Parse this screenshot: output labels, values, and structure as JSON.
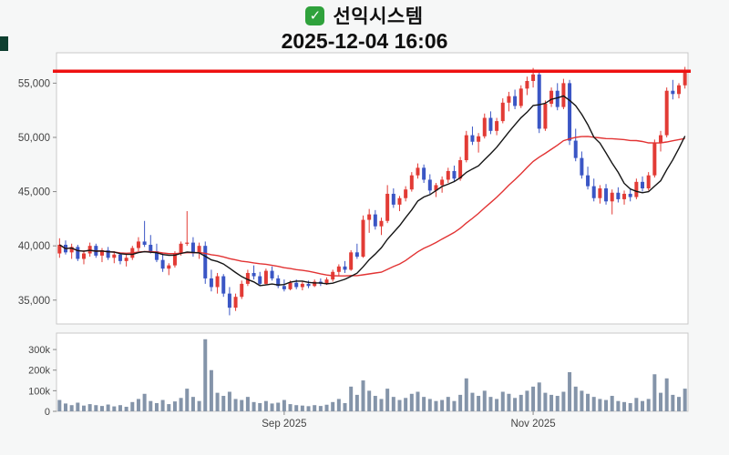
{
  "header": {
    "check_glyph": "✓",
    "title": "선익시스템",
    "subtitle": "2025-12-04 16:06"
  },
  "colors": {
    "page_bg": "#f6f7f7",
    "plot_bg": "#ffffff",
    "axis": "#c9c9c9",
    "axis_tick": "#888888",
    "tick_text": "#444444",
    "up": "#e23b35",
    "down": "#3a56c5",
    "ma_short": "#151515",
    "ma_long": "#e23333",
    "hline": "#ee1111",
    "volume": "#8494a9",
    "check_bg": "#2fa23c",
    "edge_artifact": "#0e3f30"
  },
  "chart_data": {
    "type": "candlestick",
    "title": "선익시스템",
    "timestamp": "2025-12-04 16:06",
    "hline": 56100,
    "y_axis": {
      "min": 32800,
      "max": 57800,
      "ticks": [
        35000,
        40000,
        45000,
        50000,
        55000
      ],
      "labels": [
        "35,000",
        "40,000",
        "45,000",
        "50,000",
        "55,000"
      ]
    },
    "x_axis": {
      "ticks": [
        {
          "label": "Sep 2025",
          "index": 37
        },
        {
          "label": "Nov 2025",
          "index": 78
        }
      ]
    },
    "volume_axis": {
      "max": 380000,
      "ticks": [
        0,
        100000,
        200000,
        300000
      ],
      "labels": [
        "0",
        "100k",
        "200k",
        "300k"
      ]
    },
    "moving_averages": [
      {
        "name": "ma-long-line",
        "window": 30,
        "color_key": "ma_long",
        "stroke_width": 1.4
      },
      {
        "name": "ma-short-line",
        "window": 10,
        "color_key": "ma_short",
        "stroke_width": 1.4
      }
    ],
    "candles": [
      [
        39300,
        40700,
        38900,
        40100
      ],
      [
        40100,
        40500,
        39200,
        39400
      ],
      [
        39400,
        40200,
        38800,
        39900
      ],
      [
        39900,
        40100,
        38600,
        38800
      ],
      [
        38800,
        39600,
        38300,
        39300
      ],
      [
        39300,
        40300,
        39000,
        40000
      ],
      [
        40000,
        40200,
        38900,
        39100
      ],
      [
        39100,
        39800,
        38500,
        39600
      ],
      [
        39600,
        39900,
        38700,
        38900
      ],
      [
        38900,
        39500,
        38400,
        39200
      ],
      [
        39200,
        39400,
        38300,
        38600
      ],
      [
        38600,
        39200,
        38100,
        38900
      ],
      [
        38900,
        40000,
        38700,
        39800
      ],
      [
        39800,
        40800,
        39500,
        40400
      ],
      [
        40400,
        42300,
        39900,
        40100
      ],
      [
        40100,
        41000,
        39300,
        39500
      ],
      [
        39500,
        40200,
        38500,
        38700
      ],
      [
        38700,
        39300,
        37600,
        37900
      ],
      [
        37900,
        38400,
        37300,
        38200
      ],
      [
        38200,
        39500,
        38000,
        39300
      ],
      [
        39300,
        40400,
        39100,
        40200
      ],
      [
        40200,
        43200,
        40000,
        40300
      ],
      [
        40300,
        40800,
        39000,
        39300
      ],
      [
        39300,
        40300,
        38800,
        40000
      ],
      [
        40000,
        40400,
        36500,
        37000
      ],
      [
        37000,
        37800,
        35800,
        36200
      ],
      [
        36200,
        37500,
        35600,
        37200
      ],
      [
        37200,
        37400,
        35300,
        35600
      ],
      [
        35600,
        36200,
        33600,
        34300
      ],
      [
        34300,
        35600,
        34000,
        35300
      ],
      [
        35300,
        36800,
        35100,
        36500
      ],
      [
        36500,
        37800,
        36300,
        37500
      ],
      [
        37500,
        38200,
        36900,
        37200
      ],
      [
        37200,
        37600,
        36300,
        36500
      ],
      [
        36500,
        37900,
        36400,
        37700
      ],
      [
        37700,
        38100,
        36800,
        37000
      ],
      [
        37000,
        37300,
        36100,
        36300
      ],
      [
        36300,
        36900,
        35800,
        36000
      ],
      [
        36000,
        36800,
        35900,
        36600
      ],
      [
        36600,
        36900,
        36000,
        36200
      ],
      [
        36200,
        36700,
        35900,
        36500
      ],
      [
        36500,
        36800,
        36100,
        36300
      ],
      [
        36300,
        36900,
        36200,
        36700
      ],
      [
        36700,
        37000,
        36300,
        36500
      ],
      [
        36500,
        37100,
        36400,
        36900
      ],
      [
        36900,
        37800,
        36700,
        37600
      ],
      [
        37600,
        38300,
        37200,
        38100
      ],
      [
        38100,
        38600,
        37500,
        37800
      ],
      [
        37800,
        39600,
        37700,
        39400
      ],
      [
        39400,
        40200,
        38800,
        39000
      ],
      [
        39000,
        42800,
        38900,
        42400
      ],
      [
        42400,
        43400,
        41200,
        42900
      ],
      [
        42900,
        43300,
        41500,
        41800
      ],
      [
        41800,
        42600,
        41000,
        42300
      ],
      [
        42300,
        45600,
        42100,
        44800
      ],
      [
        44800,
        45300,
        43500,
        43800
      ],
      [
        43800,
        44600,
        43200,
        44400
      ],
      [
        44400,
        45500,
        44100,
        45200
      ],
      [
        45200,
        46800,
        45000,
        46500
      ],
      [
        46500,
        47600,
        46200,
        47200
      ],
      [
        47200,
        47500,
        45800,
        46100
      ],
      [
        46100,
        46600,
        44800,
        45100
      ],
      [
        45100,
        45800,
        44500,
        45600
      ],
      [
        45600,
        46400,
        44900,
        46100
      ],
      [
        46100,
        47200,
        45800,
        46900
      ],
      [
        46900,
        47400,
        45900,
        46200
      ],
      [
        46200,
        48200,
        46000,
        47900
      ],
      [
        47900,
        50600,
        47700,
        50200
      ],
      [
        50200,
        51000,
        49300,
        49600
      ],
      [
        49600,
        50400,
        48600,
        50100
      ],
      [
        50100,
        52200,
        49900,
        51800
      ],
      [
        51800,
        52400,
        50300,
        50600
      ],
      [
        50600,
        51800,
        50200,
        51500
      ],
      [
        51500,
        53600,
        51300,
        53200
      ],
      [
        53200,
        54200,
        52400,
        53800
      ],
      [
        53800,
        54400,
        52600,
        52900
      ],
      [
        52900,
        54800,
        52700,
        54500
      ],
      [
        54500,
        55600,
        53900,
        55200
      ],
      [
        55200,
        56400,
        54600,
        55800
      ],
      [
        55800,
        56200,
        50400,
        50800
      ],
      [
        50800,
        53400,
        50600,
        53100
      ],
      [
        53100,
        54600,
        52800,
        54300
      ],
      [
        54300,
        55000,
        52500,
        52800
      ],
      [
        52800,
        55400,
        52600,
        55000
      ],
      [
        55000,
        55300,
        49300,
        49700
      ],
      [
        49700,
        50800,
        47800,
        48100
      ],
      [
        48100,
        48700,
        46200,
        46500
      ],
      [
        46500,
        47300,
        45200,
        45500
      ],
      [
        45500,
        46200,
        44100,
        44400
      ],
      [
        44400,
        45600,
        43900,
        45300
      ],
      [
        45300,
        45700,
        43800,
        44100
      ],
      [
        44100,
        45200,
        42900,
        44900
      ],
      [
        44900,
        45400,
        44000,
        44300
      ],
      [
        44300,
        45100,
        43800,
        44800
      ],
      [
        44800,
        45300,
        44100,
        44500
      ],
      [
        44500,
        46200,
        44300,
        45900
      ],
      [
        45900,
        46400,
        45000,
        45300
      ],
      [
        45300,
        46800,
        45100,
        46500
      ],
      [
        46500,
        49800,
        46300,
        49500
      ],
      [
        49500,
        50600,
        48700,
        50200
      ],
      [
        50200,
        54600,
        50000,
        54300
      ],
      [
        54300,
        55300,
        53500,
        54000
      ],
      [
        54000,
        55000,
        53600,
        54800
      ],
      [
        54800,
        56500,
        54500,
        56200
      ]
    ],
    "volumes": [
      55000,
      38000,
      30000,
      42000,
      28000,
      35000,
      30000,
      26000,
      33000,
      24000,
      30000,
      22000,
      45000,
      60000,
      85000,
      50000,
      40000,
      55000,
      35000,
      48000,
      65000,
      110000,
      70000,
      50000,
      350000,
      200000,
      90000,
      75000,
      95000,
      60000,
      55000,
      70000,
      45000,
      40000,
      50000,
      38000,
      42000,
      55000,
      35000,
      30000,
      28000,
      25000,
      30000,
      26000,
      32000,
      45000,
      60000,
      40000,
      120000,
      80000,
      150000,
      100000,
      75000,
      60000,
      110000,
      70000,
      55000,
      65000,
      85000,
      95000,
      70000,
      60000,
      50000,
      55000,
      70000,
      50000,
      80000,
      160000,
      90000,
      75000,
      100000,
      70000,
      60000,
      95000,
      85000,
      65000,
      80000,
      100000,
      120000,
      140000,
      90000,
      80000,
      75000,
      95000,
      190000,
      120000,
      100000,
      85000,
      70000,
      60000,
      55000,
      75000,
      50000,
      45000,
      40000,
      65000,
      50000,
      60000,
      180000,
      90000,
      160000,
      80000,
      70000,
      110000
    ]
  }
}
